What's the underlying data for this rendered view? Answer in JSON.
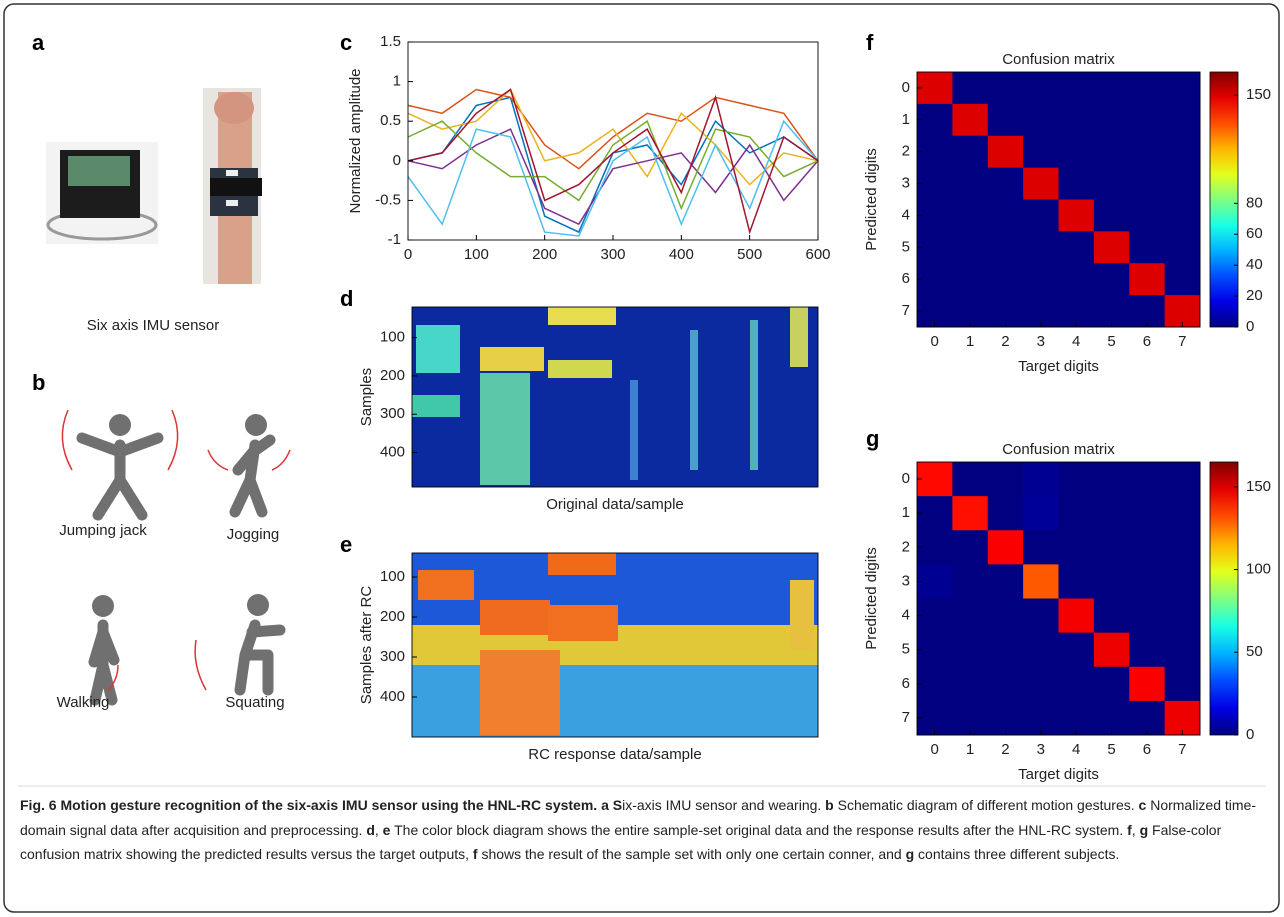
{
  "panel_a": {
    "label": "a",
    "caption": "Six axis IMU sensor"
  },
  "panel_b": {
    "label": "b",
    "gestures": [
      "Jumping jack",
      "Jogging",
      "Walking",
      "Squating"
    ]
  },
  "chart_data": [
    {
      "type": "line",
      "label": "c",
      "ylabel": "Normalized amplitude",
      "x": [
        0,
        50,
        100,
        150,
        200,
        250,
        300,
        350,
        400,
        450,
        500,
        550,
        600
      ],
      "xlim": [
        0,
        600
      ],
      "xticks": [
        0,
        100,
        200,
        300,
        400,
        500,
        600
      ],
      "ylim": [
        -1,
        1.5
      ],
      "yticks": [
        -1,
        -0.5,
        0,
        0.5,
        1,
        1.5
      ],
      "series": [
        {
          "color": "#0072bd",
          "values": [
            0,
            0.1,
            0.7,
            0.8,
            -0.7,
            -0.9,
            0.1,
            0.2,
            -0.3,
            0.5,
            0.1,
            0.3,
            0
          ]
        },
        {
          "color": "#d95319",
          "values": [
            0.7,
            0.6,
            0.9,
            0.8,
            0.2,
            -0.1,
            0.3,
            0.6,
            0.5,
            0.8,
            0.7,
            0.6,
            0
          ]
        },
        {
          "color": "#edb120",
          "values": [
            0.6,
            0.4,
            0.5,
            0.9,
            0,
            0.1,
            0.4,
            -0.2,
            0.6,
            0.2,
            -0.3,
            0.1,
            0
          ]
        },
        {
          "color": "#7e2f8e",
          "values": [
            0,
            -0.1,
            0.2,
            0.4,
            -0.6,
            -0.8,
            -0.1,
            0,
            0.1,
            -0.4,
            0.2,
            -0.5,
            0
          ]
        },
        {
          "color": "#77ac30",
          "values": [
            0.3,
            0.5,
            0.1,
            -0.2,
            -0.2,
            -0.5,
            0.2,
            0.5,
            -0.6,
            0.4,
            0.3,
            -0.2,
            0
          ]
        },
        {
          "color": "#4dbeee",
          "values": [
            -0.2,
            -0.8,
            0.4,
            0.3,
            -0.9,
            -0.95,
            0,
            0.3,
            -0.8,
            0.2,
            -0.6,
            0.5,
            0
          ]
        },
        {
          "color": "#a2142f",
          "values": [
            0,
            0.1,
            0.6,
            0.9,
            -0.5,
            -0.3,
            0.1,
            0.4,
            -0.4,
            0.8,
            -0.9,
            0.3,
            0
          ]
        }
      ]
    },
    {
      "type": "heatmap",
      "label": "d",
      "ylabel": "Samples",
      "xlabel": "Original data/sample",
      "ylim": [
        20,
        490
      ],
      "yticks": [
        100,
        200,
        300,
        400
      ]
    },
    {
      "type": "heatmap",
      "label": "e",
      "ylabel": "Samples after RC",
      "xlabel": "RC response data/sample",
      "ylim": [
        40,
        500
      ],
      "yticks": [
        100,
        200,
        300,
        400
      ]
    },
    {
      "type": "heatmap",
      "label": "f",
      "title": "Confusion matrix",
      "xlabel": "Target digits",
      "ylabel": "Predicted digits",
      "xlim": [
        -0.5,
        7.5
      ],
      "xticks": [
        0,
        1,
        2,
        3,
        4,
        5,
        6,
        7
      ],
      "ylim": [
        -0.5,
        7.5
      ],
      "yticks": [
        0,
        1,
        2,
        3,
        4,
        5,
        6,
        7
      ],
      "clim": [
        0,
        165
      ],
      "cticks": [
        0,
        20,
        40,
        60,
        80,
        150
      ],
      "values": [
        [
          150,
          0,
          0,
          0,
          0,
          0,
          0,
          0
        ],
        [
          0,
          150,
          0,
          0,
          0,
          0,
          0,
          0
        ],
        [
          0,
          0,
          150,
          0,
          0,
          0,
          0,
          0
        ],
        [
          0,
          0,
          0,
          150,
          0,
          0,
          0,
          0
        ],
        [
          0,
          0,
          0,
          0,
          150,
          0,
          0,
          0
        ],
        [
          0,
          0,
          0,
          0,
          0,
          150,
          0,
          0
        ],
        [
          0,
          0,
          0,
          0,
          0,
          0,
          150,
          0
        ],
        [
          0,
          0,
          0,
          0,
          0,
          0,
          0,
          150
        ]
      ]
    },
    {
      "type": "heatmap",
      "label": "g",
      "title": "Confusion matrix",
      "xlabel": "Target digits",
      "ylabel": "Predicted digits",
      "xlim": [
        -0.5,
        7.5
      ],
      "xticks": [
        0,
        1,
        2,
        3,
        4,
        5,
        6,
        7
      ],
      "ylim": [
        -0.5,
        7.5
      ],
      "yticks": [
        0,
        1,
        2,
        3,
        4,
        5,
        6,
        7
      ],
      "clim": [
        0,
        165
      ],
      "cticks": [
        0,
        50,
        100,
        150
      ],
      "values": [
        [
          143,
          0,
          0,
          3,
          0,
          0,
          0,
          0
        ],
        [
          0,
          142,
          0,
          4,
          0,
          0,
          0,
          0
        ],
        [
          0,
          0,
          145,
          0,
          0,
          0,
          0,
          0
        ],
        [
          3,
          0,
          0,
          130,
          0,
          0,
          0,
          0
        ],
        [
          0,
          0,
          0,
          0,
          146,
          0,
          0,
          0
        ],
        [
          0,
          0,
          0,
          0,
          0,
          147,
          0,
          0
        ],
        [
          0,
          0,
          0,
          0,
          0,
          0,
          145,
          0
        ],
        [
          0,
          0,
          0,
          0,
          0,
          0,
          0,
          147
        ]
      ]
    }
  ],
  "caption": {
    "segments": [
      {
        "text": "Fig. 6 Motion gesture recognition of the six-axis IMU sensor using the HNL-RC system. a S",
        "bold": true
      },
      {
        "text": "ix-axis IMU sensor and wearing. ",
        "bold": false
      },
      {
        "text": "b",
        "bold": true
      },
      {
        "text": " Schematic diagram of different motion gestures. ",
        "bold": false
      },
      {
        "text": "c",
        "bold": true
      },
      {
        "text": " Normalized time-domain signal data after acquisition and preprocessing. ",
        "bold": false
      },
      {
        "text": "d",
        "bold": true
      },
      {
        "text": ", ",
        "bold": false
      },
      {
        "text": "e",
        "bold": true
      },
      {
        "text": " The color block diagram shows the entire sample-set original data and the response results after the HNL-RC system. ",
        "bold": false
      },
      {
        "text": "f",
        "bold": true
      },
      {
        "text": ", ",
        "bold": false
      },
      {
        "text": "g",
        "bold": true
      },
      {
        "text": " False-color confusion matrix showing the predicted results versus the target outputs, ",
        "bold": false
      },
      {
        "text": "f",
        "bold": true
      },
      {
        "text": " shows the result of the sample set with only one certain conner, and ",
        "bold": false
      },
      {
        "text": "g",
        "bold": true
      },
      {
        "text": " contains three different subjects.",
        "bold": false
      }
    ]
  }
}
